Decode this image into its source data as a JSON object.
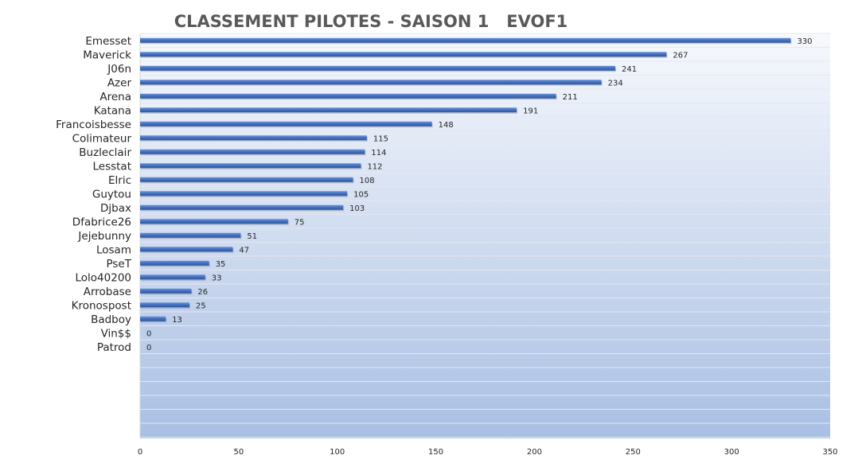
{
  "chart_data": {
    "type": "bar",
    "orientation": "horizontal",
    "title": "CLASSEMENT PILOTES - SAISON 1   EVOF1",
    "categories": [
      "Emesset",
      "Maverick",
      "J06n",
      "Azer",
      "Arena",
      "Katana",
      "Francoisbesse",
      "Colimateur",
      "Buzleclair",
      "Lesstat",
      "Elric",
      "Guytou",
      "Djbax",
      "Dfabrice26",
      "Jejebunny",
      "Losam",
      "PseT",
      "Lolo40200",
      "Arrobase",
      "Kronospost",
      "Badboy",
      "Vin$$",
      "Patrod"
    ],
    "values": [
      330,
      267,
      241,
      234,
      211,
      191,
      148,
      115,
      114,
      112,
      108,
      105,
      103,
      75,
      51,
      47,
      35,
      33,
      26,
      25,
      13,
      0,
      0
    ],
    "xlim": [
      0,
      350
    ],
    "xticks": [
      0,
      50,
      100,
      150,
      200,
      250,
      300,
      350
    ],
    "grid": true,
    "data_labels": true,
    "legend": "none",
    "colors": {
      "bar": "#4472c4",
      "bar_dark": "#2f5597",
      "plot_bg_top": "#f7f9fd",
      "plot_bg_bottom": "#a9bfe3",
      "grid": "#e3e8f2",
      "title": "#595959",
      "label": "#262626"
    }
  }
}
